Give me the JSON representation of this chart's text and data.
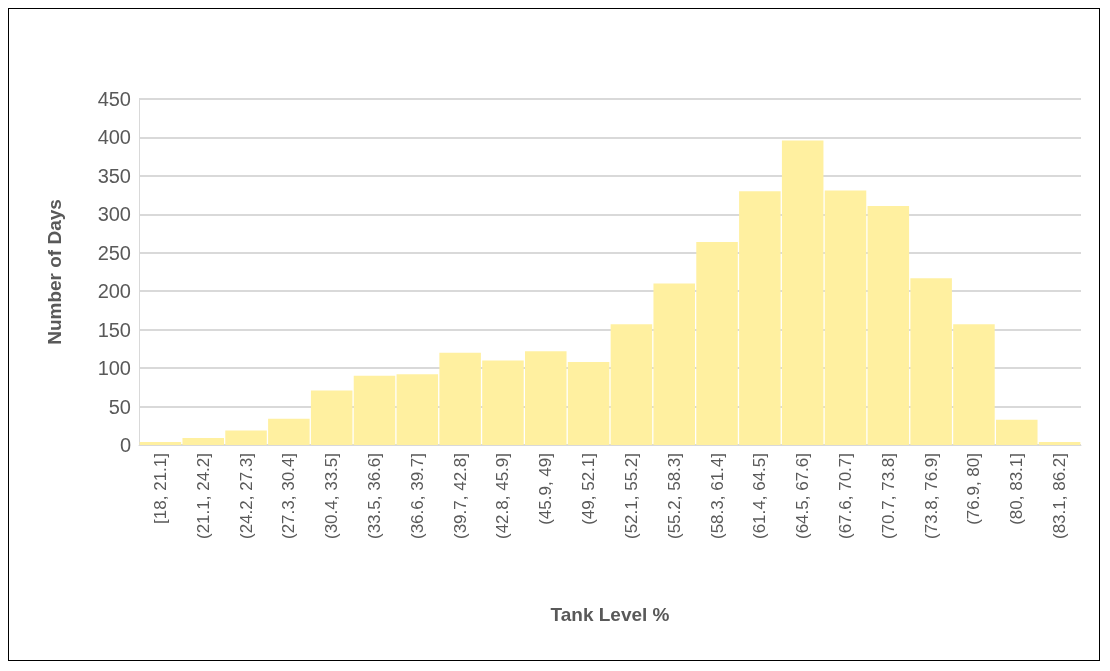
{
  "chart_data": {
    "type": "bar",
    "xlabel": "Tank Level %",
    "ylabel": "Number of Days",
    "categories": [
      "[18, 21.1]",
      "(21.1, 24.2]",
      "(24.2, 27.3]",
      "(27.3, 30.4]",
      "(30.4, 33.5]",
      "(33.5, 36.6]",
      "(36.6, 39.7]",
      "(39.7, 42.8]",
      "(42.8, 45.9]",
      "(45.9, 49]",
      "(49, 52.1]",
      "(52.1, 55.2]",
      "(55.2, 58.3]",
      "(58.3, 61.4]",
      "(61.4, 64.5]",
      "(64.5, 67.6]",
      "(67.6, 70.7]",
      "(70.7, 73.8]",
      "(73.8, 76.9]",
      "(76.9, 80]",
      "(80, 83.1]",
      "(83.1, 86.2]"
    ],
    "values": [
      4,
      9,
      19,
      34,
      71,
      90,
      92,
      120,
      110,
      122,
      108,
      157,
      210,
      264,
      330,
      396,
      331,
      311,
      217,
      157,
      33,
      4
    ],
    "color": "#fff0a0",
    "ylim": [
      0,
      450
    ],
    "yticks": [
      0,
      50,
      100,
      150,
      200,
      250,
      300,
      350,
      400,
      450
    ],
    "grid": "y"
  }
}
